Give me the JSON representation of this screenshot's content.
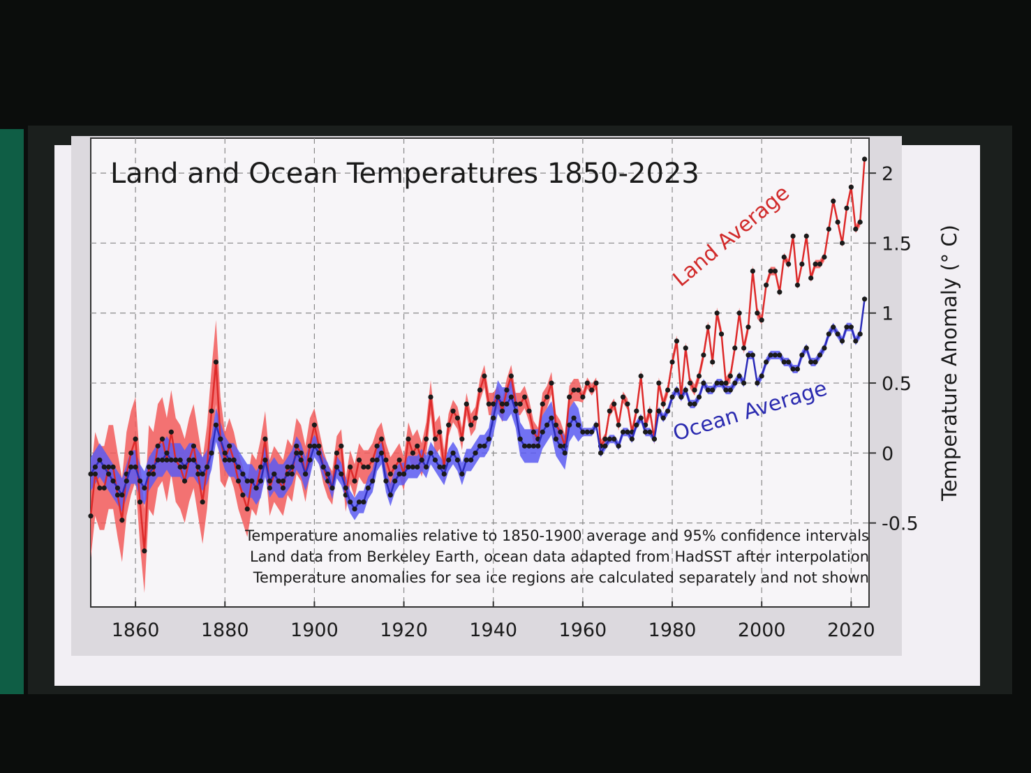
{
  "chart_data": {
    "type": "line",
    "title": "Land and Ocean Temperatures 1850-2023",
    "y_label": "Temperature Anomaly (° C)",
    "annotations": [
      "Land Average",
      "Ocean Average"
    ],
    "notes": [
      "Temperature anomalies relative to 1850-1900 average and 95% confidence intervals",
      "Land data from Berkeley Earth, ocean data adapted from HadSST after interpolation",
      "Temperature anomalies for sea ice regions are calculated separately and not shown"
    ],
    "xlim": [
      1850,
      2024
    ],
    "xticks": [
      1860,
      1880,
      1900,
      1920,
      1940,
      1960,
      1980,
      2000,
      2020
    ],
    "ylim": [
      -1.1,
      2.25
    ],
    "yticks": [
      -0.5,
      0,
      0.5,
      1,
      1.5,
      2
    ],
    "grid": true,
    "x": [
      1850,
      1851,
      1852,
      1853,
      1854,
      1855,
      1856,
      1857,
      1858,
      1859,
      1860,
      1861,
      1862,
      1863,
      1864,
      1865,
      1866,
      1867,
      1868,
      1869,
      1870,
      1871,
      1872,
      1873,
      1874,
      1875,
      1876,
      1877,
      1878,
      1879,
      1880,
      1881,
      1882,
      1883,
      1884,
      1885,
      1886,
      1887,
      1888,
      1889,
      1890,
      1891,
      1892,
      1893,
      1894,
      1895,
      1896,
      1897,
      1898,
      1899,
      1900,
      1901,
      1902,
      1903,
      1904,
      1905,
      1906,
      1907,
      1908,
      1909,
      1910,
      1911,
      1912,
      1913,
      1914,
      1915,
      1916,
      1917,
      1918,
      1919,
      1920,
      1921,
      1922,
      1923,
      1924,
      1925,
      1926,
      1927,
      1928,
      1929,
      1930,
      1931,
      1932,
      1933,
      1934,
      1935,
      1936,
      1937,
      1938,
      1939,
      1940,
      1941,
      1942,
      1943,
      1944,
      1945,
      1946,
      1947,
      1948,
      1949,
      1950,
      1951,
      1952,
      1953,
      1954,
      1955,
      1956,
      1957,
      1958,
      1959,
      1960,
      1961,
      1962,
      1963,
      1964,
      1965,
      1966,
      1967,
      1968,
      1969,
      1970,
      1971,
      1972,
      1973,
      1974,
      1975,
      1976,
      1977,
      1978,
      1979,
      1980,
      1981,
      1982,
      1983,
      1984,
      1985,
      1986,
      1987,
      1988,
      1989,
      1990,
      1991,
      1992,
      1993,
      1994,
      1995,
      1996,
      1997,
      1998,
      1999,
      2000,
      2001,
      2002,
      2003,
      2004,
      2005,
      2006,
      2007,
      2008,
      2009,
      2010,
      2011,
      2012,
      2013,
      2014,
      2015,
      2016,
      2017,
      2018,
      2019,
      2020,
      2021,
      2022,
      2023
    ],
    "series": [
      {
        "name": "Land Average",
        "color": "#dd2a2a",
        "band_color": "#f25a5a",
        "values": [
          -0.45,
          -0.15,
          -0.25,
          -0.25,
          -0.1,
          -0.1,
          -0.3,
          -0.48,
          -0.15,
          0.0,
          0.1,
          -0.35,
          -0.7,
          -0.1,
          -0.15,
          0.05,
          0.1,
          -0.05,
          0.15,
          -0.05,
          -0.1,
          -0.2,
          -0.05,
          0.05,
          -0.15,
          -0.35,
          -0.1,
          0.3,
          0.65,
          0.1,
          -0.05,
          0.05,
          -0.05,
          -0.2,
          -0.3,
          -0.4,
          -0.2,
          -0.25,
          -0.1,
          0.1,
          -0.25,
          -0.15,
          -0.2,
          -0.25,
          -0.1,
          -0.15,
          0.05,
          0.0,
          -0.15,
          0.05,
          0.2,
          0.05,
          -0.1,
          -0.2,
          -0.25,
          0.0,
          0.05,
          -0.3,
          -0.1,
          -0.2,
          -0.05,
          -0.1,
          -0.1,
          -0.05,
          0.05,
          0.1,
          -0.05,
          -0.15,
          -0.1,
          -0.05,
          -0.15,
          0.1,
          0.0,
          0.05,
          -0.05,
          0.1,
          0.4,
          0.1,
          0.15,
          -0.1,
          0.2,
          0.3,
          0.25,
          0.1,
          0.35,
          0.2,
          0.25,
          0.45,
          0.55,
          0.35,
          0.35,
          0.4,
          0.3,
          0.45,
          0.55,
          0.35,
          0.35,
          0.4,
          0.3,
          0.15,
          0.1,
          0.35,
          0.4,
          0.5,
          0.2,
          0.15,
          0.05,
          0.4,
          0.45,
          0.45,
          0.4,
          0.5,
          0.45,
          0.5,
          0.05,
          0.1,
          0.3,
          0.35,
          0.2,
          0.4,
          0.35,
          0.15,
          0.3,
          0.55,
          0.2,
          0.3,
          0.1,
          0.5,
          0.35,
          0.45,
          0.65,
          0.8,
          0.4,
          0.75,
          0.5,
          0.45,
          0.55,
          0.7,
          0.9,
          0.65,
          1.0,
          0.85,
          0.5,
          0.55,
          0.75,
          1.0,
          0.75,
          0.9,
          1.3,
          1.0,
          0.95,
          1.2,
          1.3,
          1.3,
          1.15,
          1.4,
          1.35,
          1.55,
          1.2,
          1.35,
          1.55,
          1.25,
          1.35,
          1.35,
          1.4,
          1.6,
          1.8,
          1.65,
          1.5,
          1.75,
          1.9,
          1.6,
          1.65,
          2.1
        ],
        "error": [
          0.3,
          0.3,
          0.3,
          0.3,
          0.3,
          0.3,
          0.3,
          0.3,
          0.3,
          0.3,
          0.3,
          0.3,
          0.3,
          0.3,
          0.3,
          0.3,
          0.3,
          0.3,
          0.3,
          0.3,
          0.3,
          0.3,
          0.3,
          0.3,
          0.3,
          0.3,
          0.3,
          0.3,
          0.3,
          0.3,
          0.2,
          0.2,
          0.2,
          0.2,
          0.2,
          0.2,
          0.2,
          0.2,
          0.2,
          0.2,
          0.2,
          0.2,
          0.2,
          0.2,
          0.2,
          0.2,
          0.2,
          0.2,
          0.2,
          0.2,
          0.12,
          0.12,
          0.12,
          0.12,
          0.12,
          0.12,
          0.12,
          0.12,
          0.12,
          0.12,
          0.12,
          0.12,
          0.12,
          0.12,
          0.12,
          0.12,
          0.12,
          0.12,
          0.12,
          0.12,
          0.12,
          0.12,
          0.12,
          0.12,
          0.12,
          0.12,
          0.12,
          0.12,
          0.12,
          0.12,
          0.08,
          0.08,
          0.08,
          0.08,
          0.08,
          0.08,
          0.08,
          0.08,
          0.08,
          0.08,
          0.08,
          0.08,
          0.08,
          0.08,
          0.08,
          0.08,
          0.08,
          0.08,
          0.08,
          0.08,
          0.08,
          0.08,
          0.08,
          0.08,
          0.08,
          0.08,
          0.08,
          0.08,
          0.08,
          0.08,
          0.04,
          0.04,
          0.04,
          0.04,
          0.04,
          0.04,
          0.04,
          0.04,
          0.04,
          0.04,
          0.04,
          0.04,
          0.04,
          0.04,
          0.04,
          0.04,
          0.04,
          0.04,
          0.04,
          0.04,
          0.04,
          0.04,
          0.04,
          0.04,
          0.04,
          0.04,
          0.04,
          0.04,
          0.04,
          0.04,
          0.04,
          0.04,
          0.04,
          0.04,
          0.04,
          0.04,
          0.04,
          0.04,
          0.04,
          0.04,
          0.03,
          0.03,
          0.03,
          0.03,
          0.03,
          0.03,
          0.03,
          0.03,
          0.03,
          0.03,
          0.03,
          0.03,
          0.03,
          0.03,
          0.03,
          0.03,
          0.03,
          0.03,
          0.03,
          0.03,
          0.03,
          0.03,
          0.03,
          0.03
        ]
      },
      {
        "name": "Ocean Average",
        "color": "#2b2bb8",
        "band_color": "#5a5af2",
        "values": [
          -0.15,
          -0.1,
          -0.05,
          -0.1,
          -0.15,
          -0.2,
          -0.25,
          -0.3,
          -0.2,
          -0.1,
          -0.1,
          -0.2,
          -0.25,
          -0.15,
          -0.1,
          -0.05,
          -0.05,
          0.0,
          -0.05,
          -0.05,
          -0.05,
          -0.1,
          -0.05,
          -0.05,
          -0.1,
          -0.15,
          -0.1,
          0.0,
          0.2,
          0.1,
          0.0,
          -0.05,
          -0.05,
          -0.1,
          -0.15,
          -0.2,
          -0.2,
          -0.25,
          -0.2,
          -0.05,
          -0.2,
          -0.15,
          -0.2,
          -0.2,
          -0.15,
          -0.1,
          0.0,
          -0.05,
          -0.15,
          -0.05,
          0.05,
          0.0,
          -0.1,
          -0.15,
          -0.25,
          -0.1,
          -0.15,
          -0.25,
          -0.35,
          -0.4,
          -0.35,
          -0.35,
          -0.25,
          -0.2,
          -0.05,
          0.0,
          -0.2,
          -0.3,
          -0.2,
          -0.15,
          -0.15,
          -0.1,
          -0.1,
          -0.1,
          -0.05,
          -0.1,
          0.0,
          -0.05,
          -0.1,
          -0.15,
          -0.05,
          0.0,
          -0.05,
          -0.15,
          -0.05,
          -0.05,
          0.0,
          0.05,
          0.05,
          0.1,
          0.25,
          0.4,
          0.35,
          0.35,
          0.4,
          0.3,
          0.1,
          0.05,
          0.05,
          0.05,
          0.05,
          0.15,
          0.2,
          0.25,
          0.1,
          0.05,
          0.0,
          0.2,
          0.25,
          0.2,
          0.15,
          0.15,
          0.15,
          0.2,
          0.0,
          0.05,
          0.1,
          0.1,
          0.05,
          0.15,
          0.15,
          0.1,
          0.2,
          0.25,
          0.15,
          0.15,
          0.1,
          0.3,
          0.25,
          0.3,
          0.4,
          0.45,
          0.4,
          0.45,
          0.35,
          0.35,
          0.4,
          0.5,
          0.45,
          0.45,
          0.5,
          0.5,
          0.45,
          0.45,
          0.5,
          0.55,
          0.5,
          0.7,
          0.7,
          0.5,
          0.55,
          0.65,
          0.7,
          0.7,
          0.7,
          0.65,
          0.65,
          0.6,
          0.6,
          0.7,
          0.75,
          0.65,
          0.65,
          0.7,
          0.75,
          0.85,
          0.9,
          0.85,
          0.8,
          0.9,
          0.9,
          0.8,
          0.85,
          1.1
        ],
        "error": [
          0.12,
          0.12,
          0.12,
          0.12,
          0.12,
          0.12,
          0.12,
          0.12,
          0.12,
          0.12,
          0.12,
          0.12,
          0.12,
          0.12,
          0.12,
          0.12,
          0.12,
          0.12,
          0.12,
          0.12,
          0.12,
          0.12,
          0.12,
          0.12,
          0.12,
          0.12,
          0.12,
          0.12,
          0.12,
          0.12,
          0.12,
          0.12,
          0.12,
          0.12,
          0.12,
          0.12,
          0.12,
          0.12,
          0.12,
          0.12,
          0.12,
          0.12,
          0.12,
          0.12,
          0.12,
          0.12,
          0.12,
          0.12,
          0.12,
          0.12,
          0.08,
          0.08,
          0.08,
          0.08,
          0.08,
          0.08,
          0.08,
          0.08,
          0.08,
          0.08,
          0.08,
          0.08,
          0.08,
          0.08,
          0.08,
          0.08,
          0.08,
          0.08,
          0.08,
          0.08,
          0.08,
          0.08,
          0.08,
          0.08,
          0.08,
          0.08,
          0.08,
          0.08,
          0.08,
          0.08,
          0.08,
          0.08,
          0.08,
          0.08,
          0.08,
          0.08,
          0.08,
          0.08,
          0.08,
          0.08,
          0.12,
          0.12,
          0.12,
          0.12,
          0.12,
          0.12,
          0.12,
          0.12,
          0.12,
          0.12,
          0.12,
          0.12,
          0.12,
          0.12,
          0.12,
          0.12,
          0.12,
          0.12,
          0.12,
          0.12,
          0.03,
          0.03,
          0.03,
          0.03,
          0.03,
          0.03,
          0.03,
          0.03,
          0.03,
          0.03,
          0.03,
          0.03,
          0.03,
          0.03,
          0.03,
          0.03,
          0.03,
          0.03,
          0.03,
          0.03,
          0.03,
          0.03,
          0.03,
          0.03,
          0.03,
          0.03,
          0.03,
          0.03,
          0.03,
          0.03,
          0.03,
          0.03,
          0.03,
          0.03,
          0.03,
          0.03,
          0.03,
          0.03,
          0.03,
          0.03,
          0.03,
          0.03,
          0.03,
          0.03,
          0.03,
          0.03,
          0.03,
          0.03,
          0.03,
          0.03,
          0.03,
          0.03,
          0.03,
          0.03,
          0.03,
          0.03,
          0.03,
          0.03,
          0.03,
          0.03,
          0.03,
          0.03,
          0.03,
          0.03
        ]
      }
    ]
  }
}
